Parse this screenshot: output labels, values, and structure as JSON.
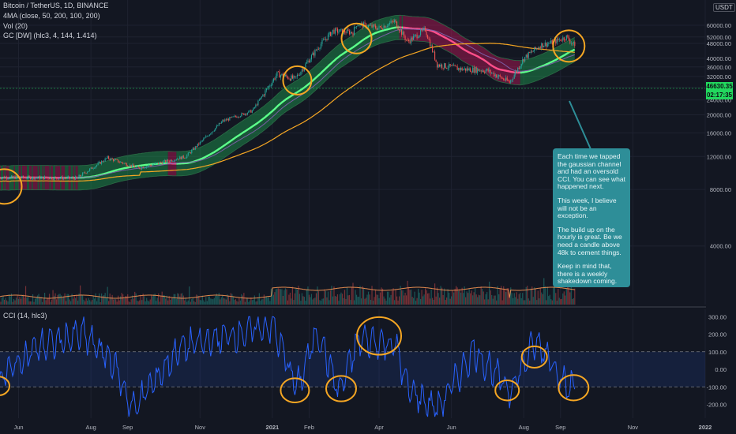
{
  "header": {
    "symbol_line": "Bitcoin / TetherUS, 1D, BINANCE",
    "ma_line": "4MA (close, 50, 200, 100, 200)",
    "vol_line": "Vol (20)",
    "gc_line": "GC [DW] (hlc3, 4, 144, 1.414)",
    "currency": "USDT"
  },
  "cci_header": "CCI (14, hlc3)",
  "price_tag": {
    "price": "46630.35",
    "countdown": "02:17:35"
  },
  "callout": {
    "paragraphs": [
      "Each time we tapped the gaussian channel and had an oversold CCI. You can see what happened next.",
      "This week, I believe will not be an exception.",
      "The build up on the hourly is great. Be we need a candle above 48k to cement things.",
      "Keep in mind that, there is a weekly shakedown coming."
    ]
  },
  "colors": {
    "background": "#131722",
    "up": "#26a69a",
    "down": "#ef5350",
    "channel_green": "#22c55e",
    "channel_red": "#c2185b",
    "ma200": "#f5a623",
    "ma_purple": "#7b5ea7",
    "cci_line": "#2962ff",
    "circle": "#f5a623",
    "price_line": "#22d85e",
    "callout_bg": "#2e8e98"
  },
  "chart_data": [
    {
      "type": "candlestick",
      "title": "Bitcoin / TetherUS, 1D, BINANCE",
      "x_ticks": [
        "Jun",
        "Aug",
        "Sep",
        "Nov",
        "2021",
        "Feb",
        "Apr",
        "Jun",
        "Aug",
        "Sep",
        "Nov",
        "2022"
      ],
      "y_ticks": [
        "60000.00",
        "52000.00",
        "48000.00",
        "40000.00",
        "36000.00",
        "32000.00",
        "28000.00",
        "24000.00",
        "20000.00",
        "16000.00",
        "12000.00",
        "8000.00",
        "4000.00"
      ],
      "y_scale": "log",
      "last_price": 46630.35,
      "approx_close_path": {
        "dates": [
          "2020-05-15",
          "2020-07-20",
          "2020-08-15",
          "2020-09-10",
          "2020-10-20",
          "2020-11-20",
          "2020-12-15",
          "2021-01-05",
          "2021-01-20",
          "2021-02-10",
          "2021-02-21",
          "2021-03-10",
          "2021-03-13",
          "2021-04-01",
          "2021-04-14",
          "2021-04-25",
          "2021-05-10",
          "2021-05-20",
          "2021-06-10",
          "2021-07-01",
          "2021-07-20",
          "2021-08-01",
          "2021-08-15",
          "2021-08-25",
          "2021-09-06",
          "2021-09-13"
        ],
        "values": [
          9300,
          9200,
          11800,
          10400,
          12000,
          18500,
          21000,
          33000,
          31000,
          47000,
          56000,
          55000,
          61000,
          58000,
          63000,
          49000,
          57000,
          37000,
          35000,
          34500,
          29800,
          40000,
          47000,
          48500,
          52000,
          46630
        ]
      },
      "series": [
        {
          "name": "GC [DW]",
          "type": "channel"
        },
        {
          "name": "4MA",
          "type": "line"
        },
        {
          "name": "Vol (20)",
          "type": "bar"
        }
      ]
    },
    {
      "type": "line",
      "title": "CCI (14, hlc3)",
      "y_ticks": [
        "300.00",
        "200.00",
        "100.00",
        "0.00",
        "-100.00",
        "-200.00"
      ],
      "ylim": [
        -280,
        320
      ],
      "bands": [
        100,
        -100
      ],
      "approx_values": {
        "dates": [
          "2020-05-15",
          "2020-06-15",
          "2020-07-25",
          "2020-08-20",
          "2020-09-05",
          "2020-10-15",
          "2020-11-20",
          "2021-01-01",
          "2021-01-22",
          "2021-02-08",
          "2021-02-26",
          "2021-03-15",
          "2021-04-15",
          "2021-04-25",
          "2021-05-20",
          "2021-06-20",
          "2021-07-20",
          "2021-08-10",
          "2021-08-22",
          "2021-09-08",
          "2021-09-13"
        ],
        "values": [
          -60,
          120,
          200,
          40,
          -230,
          120,
          180,
          250,
          -110,
          220,
          -130,
          170,
          140,
          -110,
          -230,
          110,
          -120,
          150,
          80,
          -120,
          -80
        ]
      }
    }
  ]
}
